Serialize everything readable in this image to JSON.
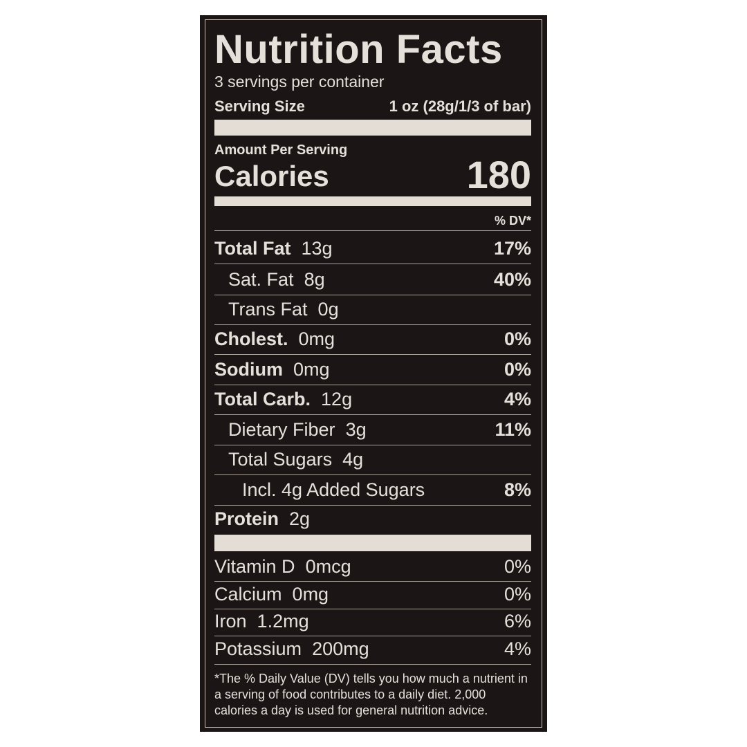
{
  "label": {
    "title": "Nutrition Facts",
    "servings_per_container": "3 servings per container",
    "serving_size_label": "Serving Size",
    "serving_size_value": "1 oz (28g/1/3 of bar)",
    "amount_per_serving": "Amount Per Serving",
    "calories_label": "Calories",
    "calories_value": "180",
    "dv_header": "% DV*",
    "nutrients": [
      {
        "name": "Total Fat",
        "amount": "13g",
        "dv": "17%",
        "bold": true,
        "indent": 0
      },
      {
        "name": "Sat. Fat",
        "amount": "8g",
        "dv": "40%",
        "bold": false,
        "indent": 1
      },
      {
        "name": "Trans Fat",
        "amount": "0g",
        "dv": "",
        "bold": false,
        "indent": 1
      },
      {
        "name": "Cholest.",
        "amount": "0mg",
        "dv": "0%",
        "bold": true,
        "indent": 0
      },
      {
        "name": "Sodium",
        "amount": "0mg",
        "dv": "0%",
        "bold": true,
        "indent": 0
      },
      {
        "name": "Total Carb.",
        "amount": "12g",
        "dv": "4%",
        "bold": true,
        "indent": 0
      },
      {
        "name": "Dietary Fiber",
        "amount": "3g",
        "dv": "11%",
        "bold": false,
        "indent": 1
      },
      {
        "name": "Total Sugars",
        "amount": "4g",
        "dv": "",
        "bold": false,
        "indent": 1
      },
      {
        "name": "Incl. 4g Added Sugars",
        "amount": "",
        "dv": "8%",
        "bold": false,
        "indent": 2
      },
      {
        "name": "Protein",
        "amount": "2g",
        "dv": "",
        "bold": true,
        "indent": 0
      }
    ],
    "vitamins": [
      {
        "name": "Vitamin D",
        "amount": "0mcg",
        "dv": "0%"
      },
      {
        "name": "Calcium",
        "amount": "0mg",
        "dv": "0%"
      },
      {
        "name": "Iron",
        "amount": "1.2mg",
        "dv": "6%"
      },
      {
        "name": "Potassium",
        "amount": "200mg",
        "dv": "4%"
      }
    ],
    "footnote": "*The % Daily Value (DV) tells you how much a nutrient in a serving of food contributes to a daily diet. 2,000 calories a day is used for general nutrition advice.",
    "colors": {
      "background": "#1b1615",
      "text": "#e6e0da"
    }
  }
}
